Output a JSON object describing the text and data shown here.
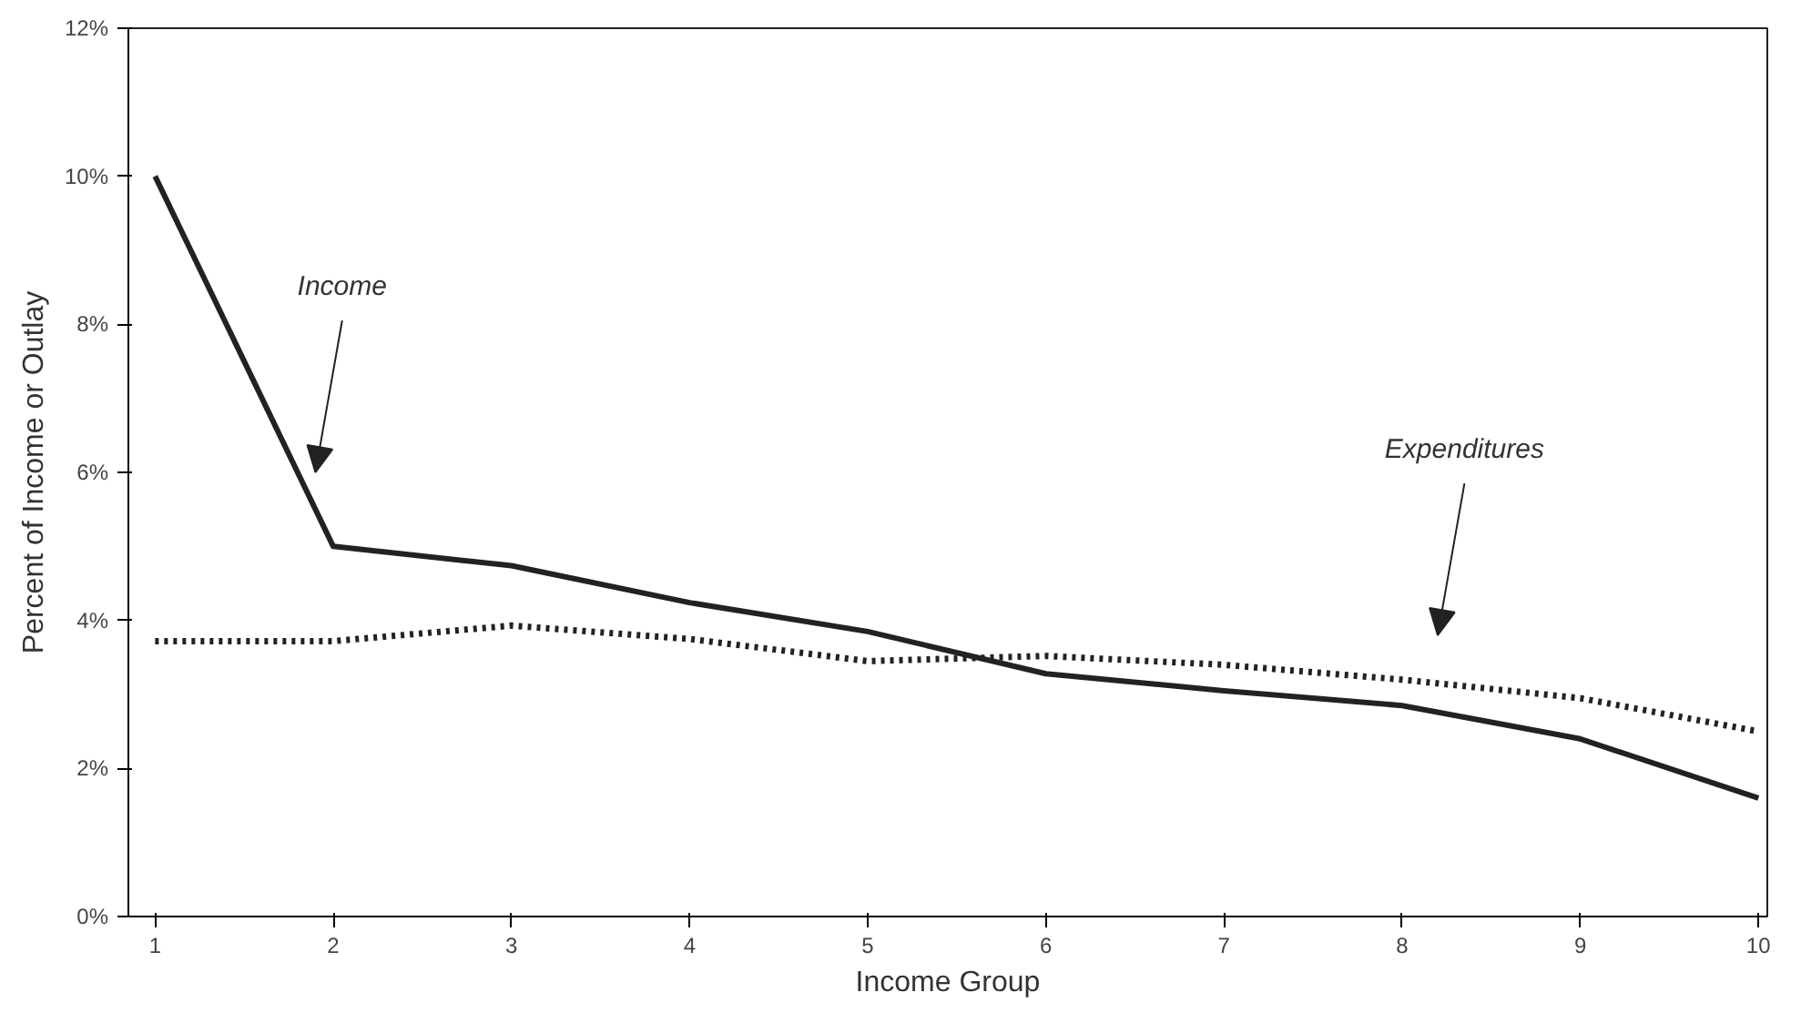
{
  "chart_data": {
    "type": "line",
    "xlabel": "Income Group",
    "ylabel": "Percent of Income or Outlay",
    "x": [
      1,
      2,
      3,
      4,
      5,
      6,
      7,
      8,
      9,
      10
    ],
    "xlim": [
      0.85,
      10.05
    ],
    "xticks": [
      1,
      2,
      3,
      4,
      5,
      6,
      7,
      8,
      9,
      10
    ],
    "ylim": [
      0,
      12
    ],
    "yticks": [
      {
        "value": 0,
        "label": "0%"
      },
      {
        "value": 2,
        "label": "2%"
      },
      {
        "value": 4,
        "label": "4%"
      },
      {
        "value": 6,
        "label": "6%"
      },
      {
        "value": 8,
        "label": "8%"
      },
      {
        "value": 10,
        "label": "10%"
      },
      {
        "value": 12,
        "label": "12%"
      }
    ],
    "grid": false,
    "legend": false,
    "marker": "none",
    "series": [
      {
        "name": "Income",
        "color": "#222222",
        "line_style": "solid",
        "values": [
          10.0,
          5.0,
          4.74,
          4.24,
          3.85,
          3.28,
          3.05,
          2.85,
          2.4,
          1.6
        ]
      },
      {
        "name": "Expenditures",
        "color": "#222222",
        "line_style": "dotted",
        "values": [
          3.72,
          3.72,
          3.93,
          3.75,
          3.45,
          3.52,
          3.4,
          3.2,
          2.95,
          2.5
        ]
      }
    ]
  }
}
